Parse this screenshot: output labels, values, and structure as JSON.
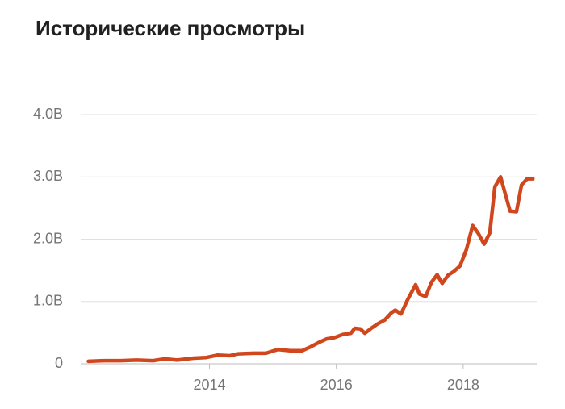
{
  "chart_data": {
    "type": "line",
    "title": "Исторические просмотры",
    "x": [
      2012.09,
      2012.34,
      2012.6,
      2012.85,
      2013.11,
      2013.3,
      2013.49,
      2013.75,
      2013.94,
      2014.13,
      2014.32,
      2014.45,
      2014.7,
      2014.89,
      2015.08,
      2015.27,
      2015.46,
      2015.59,
      2015.72,
      2015.85,
      2015.97,
      2016.1,
      2016.23,
      2016.29,
      2016.38,
      2016.45,
      2016.55,
      2016.65,
      2016.76,
      2016.87,
      2016.93,
      2017.02,
      2017.12,
      2017.25,
      2017.31,
      2017.41,
      2017.5,
      2017.59,
      2017.67,
      2017.76,
      2017.85,
      2017.95,
      2018.05,
      2018.15,
      2018.24,
      2018.33,
      2018.42,
      2018.5,
      2018.59,
      2018.66,
      2018.74,
      2018.84,
      2018.92,
      2019.01,
      2019.1
    ],
    "series": [
      {
        "color": "#d0461d",
        "values": [
          40000000,
          50000000,
          50000000,
          60000000,
          50000000,
          80000000,
          60000000,
          90000000,
          100000000,
          140000000,
          130000000,
          160000000,
          170000000,
          170000000,
          230000000,
          210000000,
          210000000,
          270000000,
          340000000,
          400000000,
          420000000,
          470000000,
          490000000,
          570000000,
          560000000,
          490000000,
          570000000,
          640000000,
          700000000,
          820000000,
          860000000,
          800000000,
          1020000000,
          1270000000,
          1120000000,
          1080000000,
          1310000000,
          1430000000,
          1290000000,
          1420000000,
          1480000000,
          1570000000,
          1830000000,
          2220000000,
          2090000000,
          1920000000,
          2100000000,
          2840000000,
          3000000000,
          2740000000,
          2450000000,
          2440000000,
          2870000000,
          2970000000,
          2970000000
        ]
      }
    ],
    "xlim": [
      2011.97,
      2019.16
    ],
    "xticks": [
      2014,
      2016,
      2018
    ],
    "ylim": [
      0,
      4000000000
    ],
    "yticks": [
      0,
      {
        "value": 1000000000,
        "label": "1.0B"
      },
      {
        "value": 2000000000,
        "label": "2.0B"
      },
      {
        "value": 3000000000,
        "label": "3.0B"
      },
      {
        "value": 4000000000,
        "label": "4.0B"
      }
    ],
    "grid": true
  }
}
